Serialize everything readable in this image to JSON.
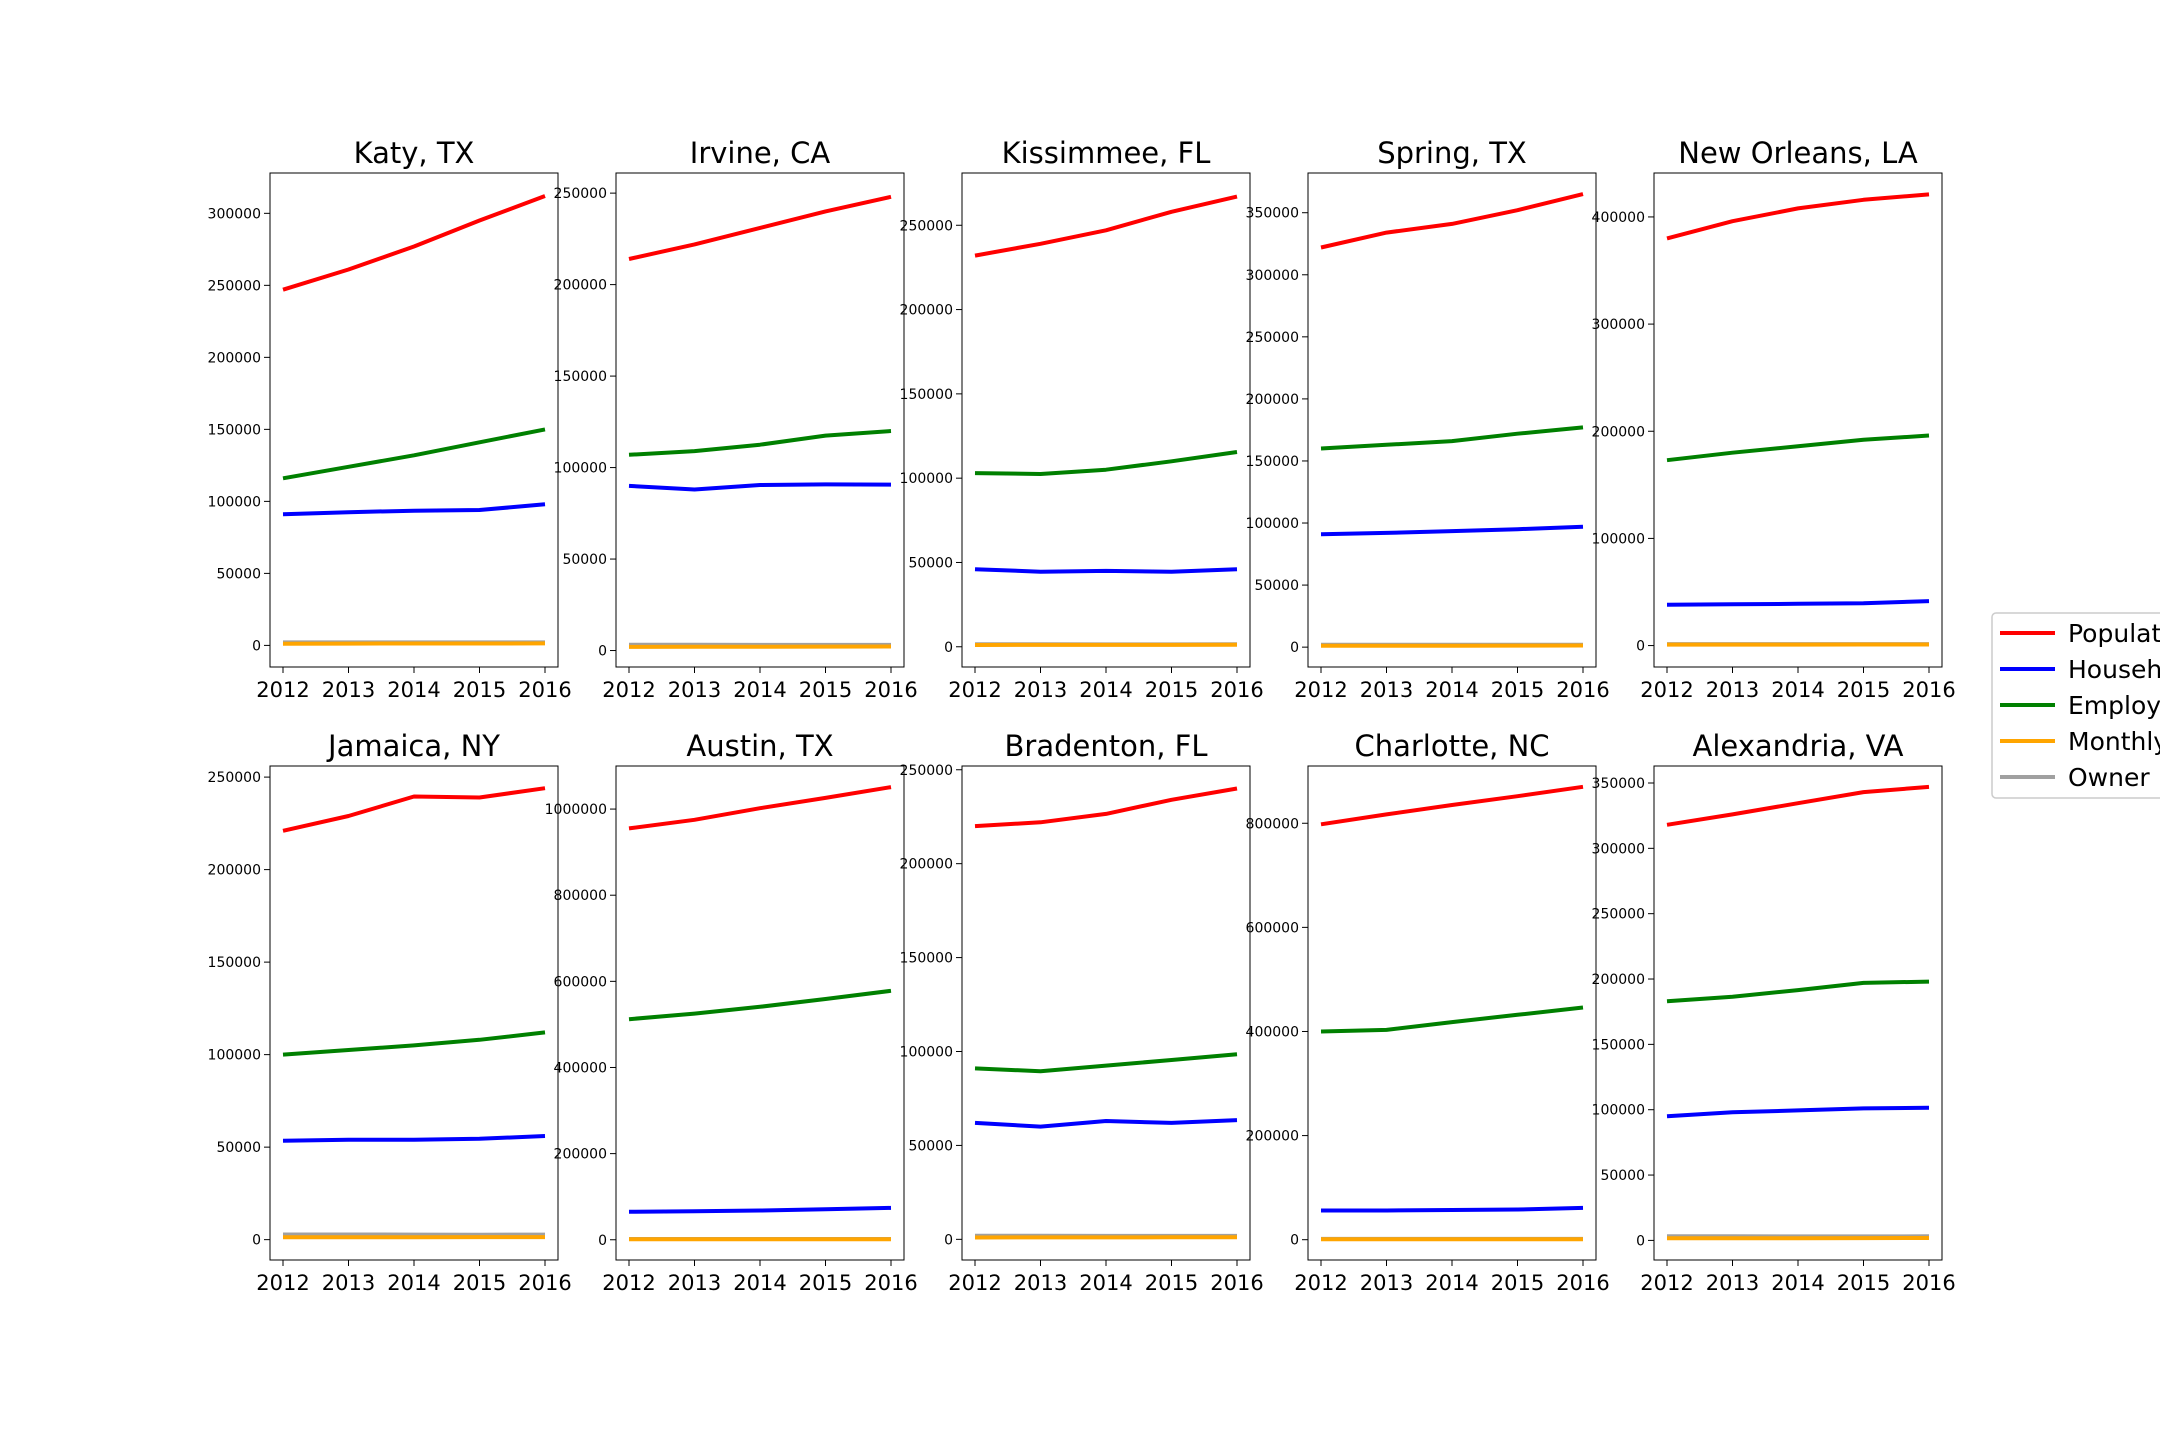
{
  "chart_data": {
    "type": "line",
    "layout": "2x5 small multiples with shared legend at right",
    "x": [
      2012,
      2013,
      2014,
      2015,
      2016
    ],
    "series_styles": [
      {
        "name": "Population",
        "color": "#ff0000"
      },
      {
        "name": "Households",
        "color": "#0000ff"
      },
      {
        "name": "Employed",
        "color": "#008000"
      },
      {
        "name": "Monthly",
        "color": "#ffa500"
      },
      {
        "name": "Owner M",
        "color": "#a0a0a0"
      }
    ],
    "legend": {
      "placement": "right, outside, clipped at figure edge",
      "entries": [
        "Populati",
        "Househo",
        "Employe",
        "Monthly",
        "Owner M"
      ]
    },
    "grid": false,
    "panels": [
      {
        "title": "Katy, TX",
        "ylim": [
          -15000,
          328000
        ],
        "yticks": [
          0,
          50000,
          100000,
          150000,
          200000,
          250000,
          300000
        ],
        "series": [
          [
            247000,
            261000,
            277000,
            295000,
            312000
          ],
          [
            91000,
            92500,
            93500,
            94000,
            98000
          ],
          [
            116000,
            124000,
            132000,
            141000,
            150000
          ],
          [
            1200,
            1250,
            1300,
            1350,
            1400
          ],
          [
            2100,
            2100,
            2050,
            2050,
            2100
          ]
        ]
      },
      {
        "title": "Irvine, CA",
        "ylim": [
          -9000,
          261000
        ],
        "yticks": [
          0,
          50000,
          100000,
          150000,
          200000,
          250000
        ],
        "series": [
          [
            214000,
            222000,
            231000,
            240000,
            248000
          ],
          [
            90000,
            88000,
            90500,
            90800,
            90700
          ],
          [
            107000,
            109000,
            112500,
            117500,
            120000
          ],
          [
            2000,
            2050,
            2100,
            2150,
            2200
          ],
          [
            3200,
            3150,
            3100,
            3100,
            3100
          ]
        ]
      },
      {
        "title": "Kissimmee, FL",
        "ylim": [
          -12000,
          281000
        ],
        "yticks": [
          0,
          50000,
          100000,
          150000,
          200000,
          250000
        ],
        "series": [
          [
            232000,
            239000,
            247000,
            258000,
            267000
          ],
          [
            46000,
            44500,
            45000,
            44500,
            46000
          ],
          [
            103000,
            102500,
            105000,
            110000,
            115500
          ],
          [
            1050,
            1080,
            1100,
            1120,
            1150
          ],
          [
            1500,
            1450,
            1400,
            1400,
            1450
          ]
        ]
      },
      {
        "title": "Spring, TX",
        "ylim": [
          -16000,
          382000
        ],
        "yticks": [
          0,
          50000,
          100000,
          150000,
          200000,
          250000,
          300000,
          350000
        ],
        "series": [
          [
            322000,
            334000,
            341000,
            352000,
            365000
          ],
          [
            91000,
            92000,
            93500,
            95000,
            97000
          ],
          [
            160000,
            163000,
            166000,
            172000,
            177000
          ],
          [
            1100,
            1150,
            1200,
            1250,
            1300
          ],
          [
            1900,
            1900,
            1850,
            1850,
            1900
          ]
        ]
      },
      {
        "title": "New Orleans, LA",
        "ylim": [
          -20000,
          441000
        ],
        "yticks": [
          0,
          100000,
          200000,
          300000,
          400000
        ],
        "series": [
          [
            380000,
            396000,
            408000,
            416000,
            421000
          ],
          [
            38000,
            38500,
            39000,
            39500,
            41500
          ],
          [
            173000,
            180000,
            186000,
            192000,
            196000
          ],
          [
            900,
            920,
            940,
            960,
            980
          ],
          [
            1400,
            1380,
            1360,
            1360,
            1380
          ]
        ]
      },
      {
        "title": "Jamaica, NY",
        "ylim": [
          -11000,
          256000
        ],
        "yticks": [
          0,
          50000,
          100000,
          150000,
          200000,
          250000
        ],
        "series": [
          [
            221000,
            229000,
            239500,
            239000,
            244000
          ],
          [
            53500,
            54000,
            54000,
            54500,
            56000
          ],
          [
            100000,
            102500,
            105000,
            108000,
            112000
          ],
          [
            1300,
            1320,
            1340,
            1360,
            1380
          ],
          [
            2800,
            2800,
            2750,
            2700,
            2750
          ]
        ]
      },
      {
        "title": "Austin, TX",
        "ylim": [
          -47000,
          1100000
        ],
        "yticks": [
          0,
          200000,
          400000,
          600000,
          800000,
          1000000
        ],
        "series": [
          [
            955000,
            975000,
            1002000,
            1026000,
            1051000
          ],
          [
            65000,
            66000,
            68000,
            71000,
            74000
          ],
          [
            512000,
            525000,
            541000,
            559000,
            578000
          ],
          [
            1000,
            1050,
            1100,
            1150,
            1200
          ],
          [
            1700,
            1700,
            1700,
            1700,
            1750
          ]
        ]
      },
      {
        "title": "Bradenton, FL",
        "ylim": [
          -11000,
          252000
        ],
        "yticks": [
          0,
          50000,
          100000,
          150000,
          200000,
          250000
        ],
        "series": [
          [
            220000,
            222000,
            226500,
            234000,
            240000
          ],
          [
            62000,
            60000,
            63000,
            62000,
            63500
          ],
          [
            91000,
            89500,
            92500,
            95500,
            98500
          ],
          [
            1000,
            1020,
            1040,
            1060,
            1080
          ],
          [
            1900,
            1900,
            1850,
            1850,
            1850
          ]
        ]
      },
      {
        "title": "Charlotte, NC",
        "ylim": [
          -39000,
          910000
        ],
        "yticks": [
          0,
          200000,
          400000,
          600000,
          800000
        ],
        "series": [
          [
            798000,
            817000,
            835000,
            852000,
            870000
          ],
          [
            56000,
            56000,
            57000,
            58000,
            61000
          ],
          [
            400000,
            403000,
            418000,
            432000,
            446000
          ],
          [
            950,
            970,
            990,
            1010,
            1030
          ],
          [
            1600,
            1600,
            1580,
            1580,
            1600
          ]
        ]
      },
      {
        "title": "Alexandria, VA",
        "ylim": [
          -15000,
          363000
        ],
        "yticks": [
          0,
          50000,
          100000,
          150000,
          200000,
          250000,
          300000,
          350000
        ],
        "series": [
          [
            318000,
            326000,
            334500,
            343000,
            347000
          ],
          [
            95000,
            98000,
            99500,
            101000,
            101500
          ],
          [
            183000,
            186500,
            191500,
            197000,
            198000
          ],
          [
            1600,
            1650,
            1700,
            1750,
            1800
          ],
          [
            3100,
            3100,
            3050,
            3050,
            3100
          ]
        ]
      }
    ]
  }
}
